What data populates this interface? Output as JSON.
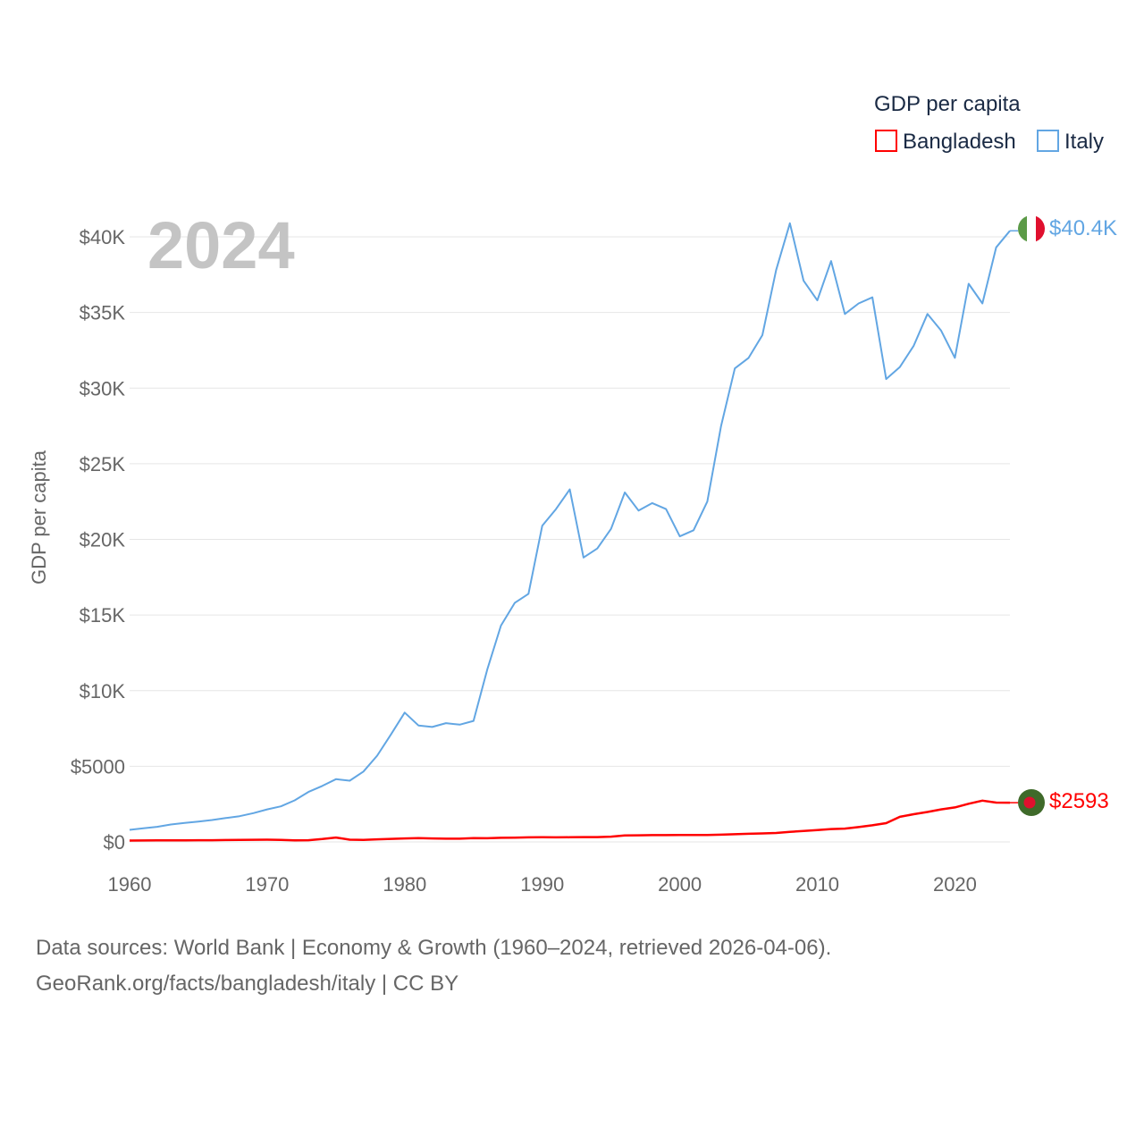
{
  "colors": {
    "bangladesh": "#ff0000",
    "italy": "#62a6e3",
    "grid": "#e6e6e6",
    "axis_text": "#666666",
    "year_text": "#c4c4c4",
    "legend_text": "#1a2a44",
    "flag_italy_green": "#5b9a47",
    "flag_italy_white": "#ffffff",
    "flag_italy_red": "#e0102e",
    "flag_bd_green": "#3f6a2a",
    "flag_bd_red": "#e0102e"
  },
  "legend": {
    "title": "GDP per capita",
    "items": [
      {
        "label": "Bangladesh",
        "color": "#ff0000"
      },
      {
        "label": "Italy",
        "color": "#62a6e3"
      }
    ]
  },
  "year_display": "2024",
  "source": {
    "line1": "Data sources: World Bank | Economy & Growth (1960–2024, retrieved 2026-04-06).",
    "line2": "GeoRank.org/facts/bangladesh/italy | CC BY"
  },
  "end_labels": {
    "italy": "$40.4K",
    "bangladesh": "$2593"
  },
  "icons": {
    "italy_flag": "italy-flag-icon",
    "bangladesh_flag": "bangladesh-flag-icon"
  },
  "chart_data": {
    "type": "line",
    "title": "",
    "xlabel": "",
    "ylabel": "GDP per capita",
    "xlim": [
      1960,
      2024
    ],
    "ylim": [
      0,
      40000
    ],
    "grid": true,
    "legend_position": "top-right",
    "x_ticks": [
      {
        "value": 1960,
        "label": "1960"
      },
      {
        "value": 1970,
        "label": "1970"
      },
      {
        "value": 1980,
        "label": "1980"
      },
      {
        "value": 1990,
        "label": "1990"
      },
      {
        "value": 2000,
        "label": "2000"
      },
      {
        "value": 2010,
        "label": "2010"
      },
      {
        "value": 2020,
        "label": "2020"
      }
    ],
    "y_ticks": [
      {
        "value": 0,
        "label": "$0"
      },
      {
        "value": 5000,
        "label": "$5000"
      },
      {
        "value": 10000,
        "label": "$10K"
      },
      {
        "value": 15000,
        "label": "$15K"
      },
      {
        "value": 20000,
        "label": "$20K"
      },
      {
        "value": 25000,
        "label": "$25K"
      },
      {
        "value": 30000,
        "label": "$30K"
      },
      {
        "value": 35000,
        "label": "$35K"
      },
      {
        "value": 40000,
        "label": "$40K"
      }
    ],
    "years": [
      1960,
      1961,
      1962,
      1963,
      1964,
      1965,
      1966,
      1967,
      1968,
      1969,
      1970,
      1971,
      1972,
      1973,
      1974,
      1975,
      1976,
      1977,
      1978,
      1979,
      1980,
      1981,
      1982,
      1983,
      1984,
      1985,
      1986,
      1987,
      1988,
      1989,
      1990,
      1991,
      1992,
      1993,
      1994,
      1995,
      1996,
      1997,
      1998,
      1999,
      2000,
      2001,
      2002,
      2003,
      2004,
      2005,
      2006,
      2007,
      2008,
      2009,
      2010,
      2011,
      2012,
      2013,
      2014,
      2015,
      2016,
      2017,
      2018,
      2019,
      2020,
      2021,
      2022,
      2023,
      2024
    ],
    "series": [
      {
        "name": "Italy",
        "key": "italy",
        "values": [
          800,
          900,
          1000,
          1150,
          1250,
          1350,
          1450,
          1580,
          1700,
          1900,
          2150,
          2350,
          2750,
          3300,
          3700,
          4150,
          4050,
          4650,
          5700,
          7100,
          8550,
          7700,
          7600,
          7850,
          7750,
          8000,
          11400,
          14300,
          15800,
          16400,
          20900,
          22000,
          23300,
          18800,
          19400,
          20700,
          23100,
          21900,
          22400,
          22000,
          20200,
          20600,
          22500,
          27500,
          31300,
          32000,
          33500,
          37800,
          40900,
          37100,
          35800,
          38400,
          34900,
          35600,
          36000,
          30600,
          31400,
          32800,
          34900,
          33800,
          32000,
          36900,
          35600,
          39300,
          40400
        ]
      },
      {
        "name": "Bangladesh",
        "key": "bangladesh",
        "values": [
          90,
          95,
          100,
          100,
          105,
          110,
          115,
          125,
          130,
          140,
          145,
          135,
          100,
          115,
          190,
          290,
          150,
          130,
          170,
          200,
          230,
          250,
          230,
          210,
          210,
          250,
          240,
          270,
          280,
          300,
          310,
          300,
          310,
          320,
          320,
          350,
          430,
          440,
          450,
          450,
          460,
          460,
          460,
          480,
          510,
          540,
          560,
          590,
          670,
          720,
          780,
          850,
          880,
          980,
          1100,
          1240,
          1660,
          1830,
          1980,
          2150,
          2280,
          2520,
          2730,
          2600,
          2593
        ]
      }
    ]
  }
}
